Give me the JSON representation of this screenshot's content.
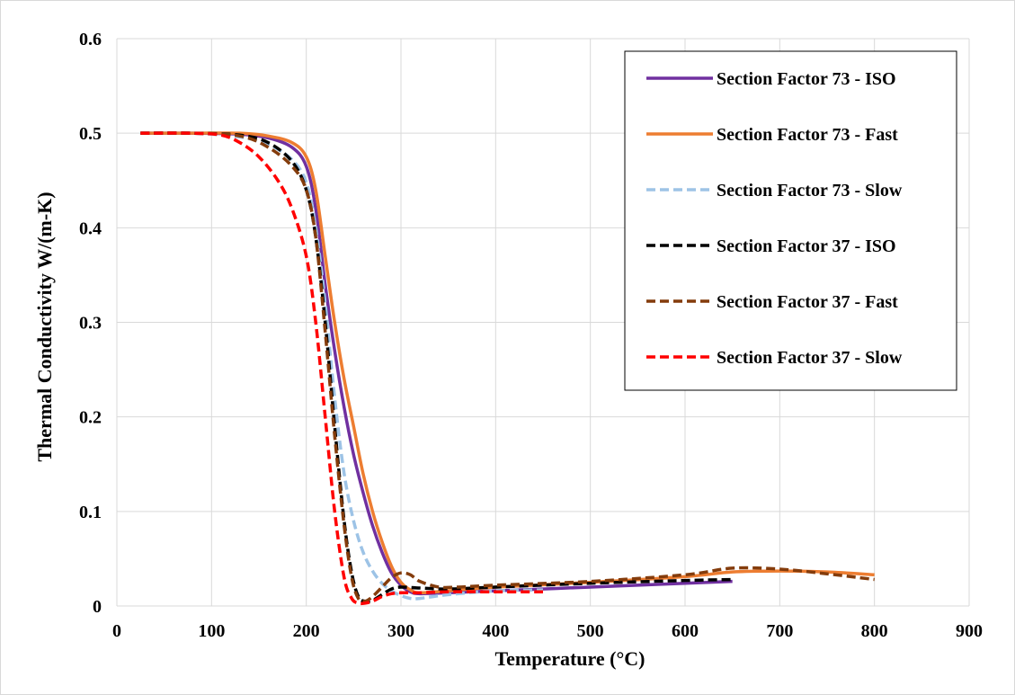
{
  "chart_data": {
    "type": "line",
    "title": "",
    "xlabel": "Temperature (°C)",
    "ylabel": "Thermal Conductivity W/(m-K)",
    "xlim": [
      0,
      900
    ],
    "ylim": [
      0,
      0.6
    ],
    "xticks": [
      0,
      100,
      200,
      300,
      400,
      500,
      600,
      700,
      800,
      900
    ],
    "yticks": [
      0,
      0.1,
      0.2,
      0.3,
      0.4,
      0.5,
      0.6
    ],
    "xtick_labels": [
      "0",
      "100",
      "200",
      "300",
      "400",
      "500",
      "600",
      "700",
      "800",
      "900"
    ],
    "ytick_labels": [
      "0",
      "0.1",
      "0.2",
      "0.3",
      "0.4",
      "0.5",
      "0.6"
    ],
    "grid": true,
    "legend_position": "top-right",
    "series": [
      {
        "name": "Section Factor 73 - ISO",
        "color": "#7030A0",
        "dash": "solid",
        "x": [
          25,
          80,
          130,
          160,
          185,
          200,
          210,
          220,
          230,
          240,
          250,
          260,
          270,
          280,
          290,
          300,
          310,
          320,
          350,
          400,
          500,
          600,
          650
        ],
        "y": [
          0.5,
          0.5,
          0.499,
          0.495,
          0.485,
          0.465,
          0.42,
          0.34,
          0.27,
          0.21,
          0.16,
          0.12,
          0.085,
          0.057,
          0.035,
          0.022,
          0.015,
          0.013,
          0.014,
          0.016,
          0.02,
          0.024,
          0.026
        ]
      },
      {
        "name": "Section Factor 73 - Fast",
        "color": "#ED7D31",
        "dash": "solid",
        "x": [
          25,
          80,
          130,
          160,
          185,
          200,
          210,
          220,
          230,
          240,
          250,
          260,
          270,
          280,
          290,
          300,
          310,
          320,
          350,
          400,
          500,
          600,
          650,
          700,
          750,
          800
        ],
        "y": [
          0.5,
          0.5,
          0.5,
          0.497,
          0.49,
          0.475,
          0.44,
          0.37,
          0.3,
          0.24,
          0.19,
          0.14,
          0.1,
          0.068,
          0.042,
          0.025,
          0.017,
          0.014,
          0.016,
          0.02,
          0.025,
          0.031,
          0.036,
          0.037,
          0.036,
          0.033
        ]
      },
      {
        "name": "Section Factor 73 - Slow",
        "color": "#9DC3E6",
        "dash": "dash",
        "x": [
          25,
          80,
          130,
          160,
          185,
          200,
          210,
          220,
          230,
          240,
          250,
          260,
          270,
          280,
          290,
          300,
          310,
          320,
          350,
          400,
          450
        ],
        "y": [
          0.5,
          0.5,
          0.496,
          0.488,
          0.472,
          0.448,
          0.4,
          0.32,
          0.22,
          0.14,
          0.09,
          0.057,
          0.037,
          0.024,
          0.016,
          0.011,
          0.008,
          0.008,
          0.012,
          0.016,
          0.017
        ]
      },
      {
        "name": "Section Factor 37 - ISO",
        "color": "#000000",
        "dash": "dash",
        "x": [
          25,
          80,
          130,
          160,
          185,
          200,
          210,
          220,
          230,
          240,
          248,
          255,
          262,
          270,
          280,
          290,
          300,
          320,
          350,
          400,
          500,
          600,
          650
        ],
        "y": [
          0.5,
          0.5,
          0.498,
          0.49,
          0.47,
          0.44,
          0.39,
          0.3,
          0.19,
          0.09,
          0.035,
          0.01,
          0.005,
          0.006,
          0.012,
          0.018,
          0.02,
          0.019,
          0.018,
          0.02,
          0.024,
          0.027,
          0.028
        ]
      },
      {
        "name": "Section Factor 37 - Fast",
        "color": "#843C0C",
        "dash": "dash",
        "x": [
          25,
          80,
          130,
          160,
          185,
          200,
          210,
          220,
          230,
          240,
          248,
          255,
          262,
          270,
          280,
          290,
          300,
          310,
          320,
          340,
          360,
          400,
          500,
          600,
          650,
          700,
          750,
          800
        ],
        "y": [
          0.5,
          0.5,
          0.497,
          0.485,
          0.465,
          0.44,
          0.39,
          0.29,
          0.18,
          0.085,
          0.03,
          0.008,
          0.005,
          0.01,
          0.02,
          0.03,
          0.035,
          0.033,
          0.026,
          0.02,
          0.02,
          0.022,
          0.026,
          0.033,
          0.04,
          0.039,
          0.034,
          0.028
        ]
      },
      {
        "name": "Section Factor 37 - Slow",
        "color": "#FF0000",
        "dash": "dash",
        "x": [
          25,
          80,
          110,
          130,
          150,
          170,
          185,
          200,
          210,
          220,
          230,
          240,
          248,
          255,
          262,
          270,
          280,
          290,
          300,
          320,
          350,
          400,
          450
        ],
        "y": [
          0.5,
          0.5,
          0.498,
          0.49,
          0.475,
          0.45,
          0.42,
          0.37,
          0.3,
          0.2,
          0.1,
          0.03,
          0.008,
          0.003,
          0.003,
          0.005,
          0.01,
          0.013,
          0.014,
          0.014,
          0.015,
          0.015,
          0.015
        ]
      }
    ]
  }
}
